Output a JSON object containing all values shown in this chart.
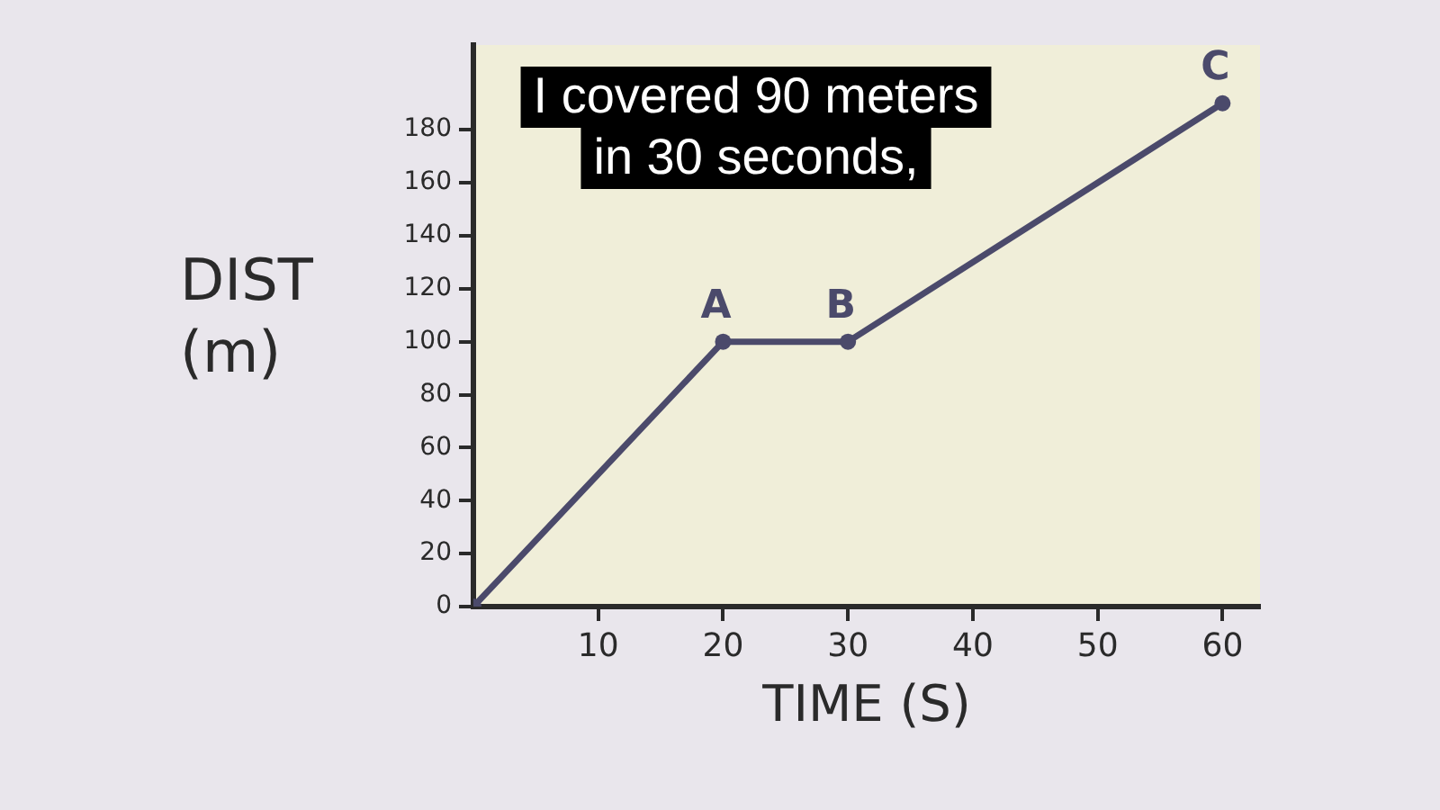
{
  "chart_data": {
    "type": "line",
    "xlabel": "TIME (S)",
    "ylabel": "DIST (m)",
    "x": [
      0,
      20,
      30,
      60
    ],
    "values": [
      0,
      100,
      100,
      190
    ],
    "color": "#4b4a6b",
    "xlim": [
      0,
      63
    ],
    "ylim": [
      0,
      212
    ],
    "xticks": [
      10,
      20,
      30,
      40,
      50,
      60
    ],
    "yticks": [
      0,
      20,
      40,
      60,
      80,
      100,
      120,
      140,
      160,
      180
    ],
    "marker": "circle",
    "line_style": "solid",
    "grid": false,
    "legend": false,
    "annotations": [
      "I covered 90 meters in 30 seconds,",
      {
        "text": "A",
        "x": 20,
        "y": 100
      },
      {
        "text": "B",
        "x": 30,
        "y": 100
      },
      {
        "text": "C",
        "x": 60,
        "y": 190
      }
    ]
  }
}
